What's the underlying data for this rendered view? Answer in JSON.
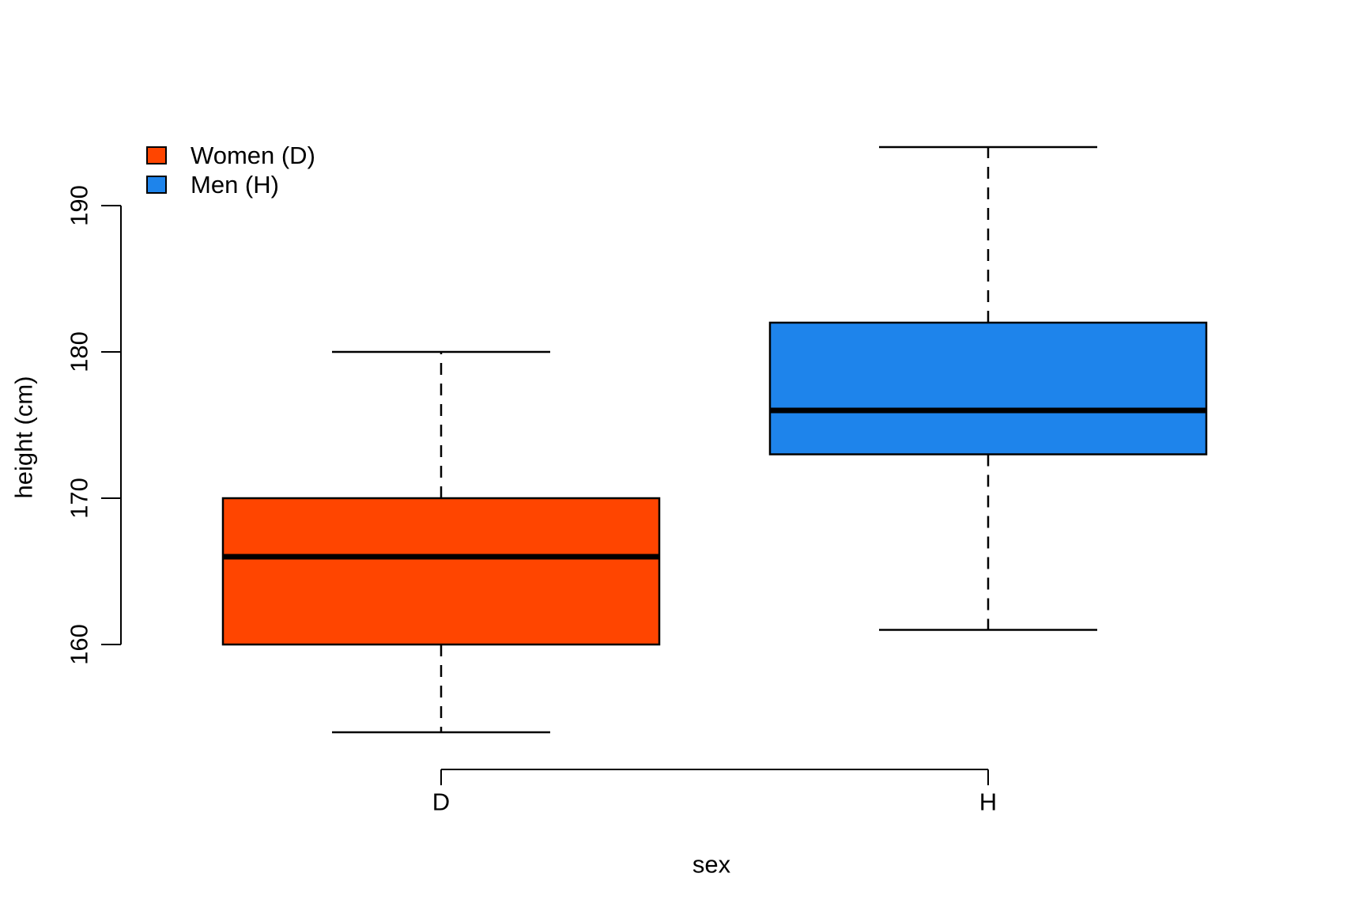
{
  "figure": {
    "background": "#FFFFFF"
  },
  "legend": {
    "position": "top-left",
    "items": [
      {
        "label": "Women (D)",
        "color": "#FF4500"
      },
      {
        "label": "Men (H)",
        "color": "#1E84EB"
      }
    ]
  },
  "chart_data": {
    "type": "boxplot",
    "title": "",
    "xlabel": "sex",
    "ylabel": "height (cm)",
    "categories": [
      "D",
      "H"
    ],
    "y_ticks": [
      160,
      170,
      180,
      190
    ],
    "ylim": [
      152,
      196
    ],
    "grid": false,
    "legend_position": "top-left",
    "axis_color": "#000000",
    "series": [
      {
        "name": "Women (D)",
        "category": "D",
        "fill_color": "#FF4500",
        "border_color": "#000000",
        "whisker_low": 154,
        "q1": 160,
        "median": 166,
        "q3": 170,
        "whisker_high": 180
      },
      {
        "name": "Men (H)",
        "category": "H",
        "fill_color": "#1E84EB",
        "border_color": "#000000",
        "whisker_low": 161,
        "q1": 173,
        "median": 176,
        "q3": 182,
        "whisker_high": 194
      }
    ]
  }
}
